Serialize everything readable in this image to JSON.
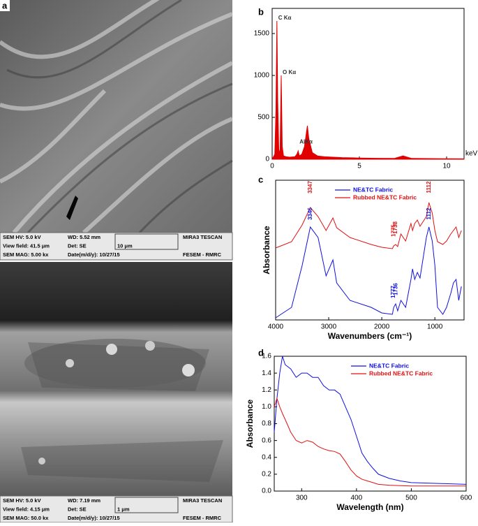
{
  "sem_images": [
    {
      "panel": "a",
      "info": [
        [
          "SEM HV: 5.0 kV",
          "WD: 5.52 mm",
          "MIRA3 TESCAN"
        ],
        [
          "View field: 41.5 μm",
          "Det: SE",
          "10 μm"
        ],
        [
          "SEM MAG: 5.00 kx",
          "Date(m/d/y): 10/27/15",
          "FESEM - RMRC"
        ]
      ]
    },
    {
      "info": [
        [
          "SEM HV: 5.0 kV",
          "WD: 7.19 mm",
          "MIRA3 TESCAN"
        ],
        [
          "View field: 4.15 μm",
          "Det: SE",
          "1 μm"
        ],
        [
          "SEM MAG: 50.0 kx",
          "Date(m/d/y): 10/27/15",
          "FESEM - RMRC"
        ]
      ]
    }
  ],
  "chart_data": [
    {
      "type": "area",
      "panel": "b",
      "xlabel": "keV",
      "x": [
        0,
        0.15,
        0.22,
        0.27,
        0.32,
        0.38,
        0.45,
        0.52,
        0.58,
        0.65,
        0.8,
        1.0,
        1.3,
        1.42,
        1.49,
        1.56,
        1.7,
        1.85,
        1.95,
        2.02,
        2.1,
        2.3,
        2.6,
        3,
        4,
        5,
        6,
        7,
        7.5,
        8,
        9,
        10,
        11
      ],
      "series": [
        {
          "color": "#e00000",
          "values": [
            0,
            60,
            600,
            1650,
            700,
            120,
            60,
            1000,
            150,
            40,
            30,
            25,
            30,
            60,
            100,
            40,
            60,
            150,
            300,
            400,
            250,
            80,
            40,
            30,
            20,
            15,
            12,
            10,
            40,
            10,
            8,
            6,
            5
          ]
        }
      ],
      "xlim": [
        0,
        11
      ],
      "xticks": [
        0,
        5,
        10
      ],
      "ylim": [
        0,
        1800
      ],
      "yticks": [
        0,
        500,
        1000,
        1500
      ],
      "annotations": [
        {
          "text": "C Kα",
          "x": 0.27,
          "y": 1650
        },
        {
          "text": "O Kα",
          "x": 0.52,
          "y": 1000
        },
        {
          "text": "AlKα",
          "x": 1.49,
          "y": 170
        }
      ]
    },
    {
      "type": "line",
      "panel": "c",
      "xlabel": "Wavenumbers (cm⁻¹)",
      "ylabel": "Absorbance",
      "legend": "upper center",
      "x": [
        4000,
        3700,
        3500,
        3347,
        3200,
        3050,
        2920,
        2850,
        2600,
        2200,
        2000,
        1800,
        1775,
        1738,
        1700,
        1640,
        1550,
        1450,
        1420,
        1380,
        1330,
        1280,
        1160,
        1112,
        1050,
        1000,
        950,
        850,
        780,
        700,
        650,
        600,
        550,
        500
      ],
      "series": [
        {
          "name": "NE&TC Fabric",
          "color": "#1010e0",
          "values": [
            0.015,
            0.09,
            0.39,
            0.665,
            0.59,
            0.315,
            0.43,
            0.265,
            0.14,
            0.09,
            0.05,
            0.04,
            0.09,
            0.115,
            0.065,
            0.14,
            0.09,
            0.29,
            0.365,
            0.29,
            0.34,
            0.3,
            0.59,
            0.665,
            0.565,
            0.39,
            0.09,
            0.04,
            0.09,
            0.19,
            0.265,
            0.29,
            0.14,
            0.24
          ]
        },
        {
          "name": "Rubbed NE&TC Fabric",
          "color": "#e01010",
          "values": [
            0.515,
            0.56,
            0.68,
            0.805,
            0.74,
            0.64,
            0.73,
            0.66,
            0.59,
            0.54,
            0.52,
            0.51,
            0.53,
            0.54,
            0.525,
            0.615,
            0.565,
            0.69,
            0.64,
            0.69,
            0.715,
            0.67,
            0.74,
            0.84,
            0.765,
            0.64,
            0.56,
            0.54,
            0.565,
            0.615,
            0.64,
            0.665,
            0.59,
            0.64
          ]
        }
      ],
      "xlim": [
        4000,
        450
      ],
      "xticks": [
        4000,
        3000,
        2000,
        1000
      ],
      "ylim": [
        0,
        1
      ],
      "annotations": [
        {
          "text": "3347",
          "x": 3347,
          "y": 0.95,
          "color": "#e01010"
        },
        {
          "text": "1775",
          "x": 1775,
          "y": 0.64,
          "color": "#e01010"
        },
        {
          "text": "1738",
          "x": 1738,
          "y": 0.66,
          "color": "#e01010"
        },
        {
          "text": "1112",
          "x": 1112,
          "y": 0.95,
          "color": "#e01010"
        },
        {
          "text": "3346",
          "x": 3346,
          "y": 0.76,
          "color": "#1010e0"
        },
        {
          "text": "1777",
          "x": 1777,
          "y": 0.2,
          "color": "#1010e0"
        },
        {
          "text": "1736",
          "x": 1736,
          "y": 0.22,
          "color": "#1010e0"
        },
        {
          "text": "1112",
          "x": 1112,
          "y": 0.76,
          "color": "#1010e0"
        }
      ]
    },
    {
      "type": "line",
      "panel": "d",
      "xlabel": "Wavelength (nm)",
      "ylabel": "Absorbance",
      "legend": "upper right",
      "x": [
        250,
        255,
        260,
        265,
        270,
        280,
        290,
        300,
        310,
        320,
        330,
        340,
        350,
        360,
        370,
        380,
        390,
        400,
        410,
        420,
        430,
        440,
        460,
        480,
        500,
        550,
        600
      ],
      "series": [
        {
          "name": "NE&TC Fabric",
          "color": "#1010e0",
          "values": [
            0.7,
            1.1,
            1.4,
            1.6,
            1.5,
            1.45,
            1.35,
            1.4,
            1.4,
            1.35,
            1.35,
            1.25,
            1.2,
            1.2,
            1.15,
            1.0,
            0.85,
            0.65,
            0.45,
            0.35,
            0.27,
            0.2,
            0.15,
            0.12,
            0.1,
            0.09,
            0.08
          ]
        },
        {
          "name": "Rubbed NE&TC Fabric",
          "color": "#e01010",
          "values": [
            1.0,
            1.1,
            1.0,
            0.92,
            0.85,
            0.7,
            0.6,
            0.57,
            0.6,
            0.58,
            0.53,
            0.5,
            0.48,
            0.47,
            0.44,
            0.35,
            0.25,
            0.18,
            0.14,
            0.12,
            0.1,
            0.08,
            0.07,
            0.065,
            0.06,
            0.06,
            0.06
          ]
        }
      ],
      "xlim": [
        250,
        600
      ],
      "xticks": [
        300,
        400,
        500,
        600
      ],
      "ylim": [
        0,
        1.6
      ],
      "yticks": [
        {
          "value": 0,
          "label": "0.0"
        },
        0.2,
        0.4,
        0.6,
        0.8,
        {
          "value": 1,
          "label": "1.0"
        },
        1.2,
        1.4,
        1.6
      ]
    }
  ]
}
